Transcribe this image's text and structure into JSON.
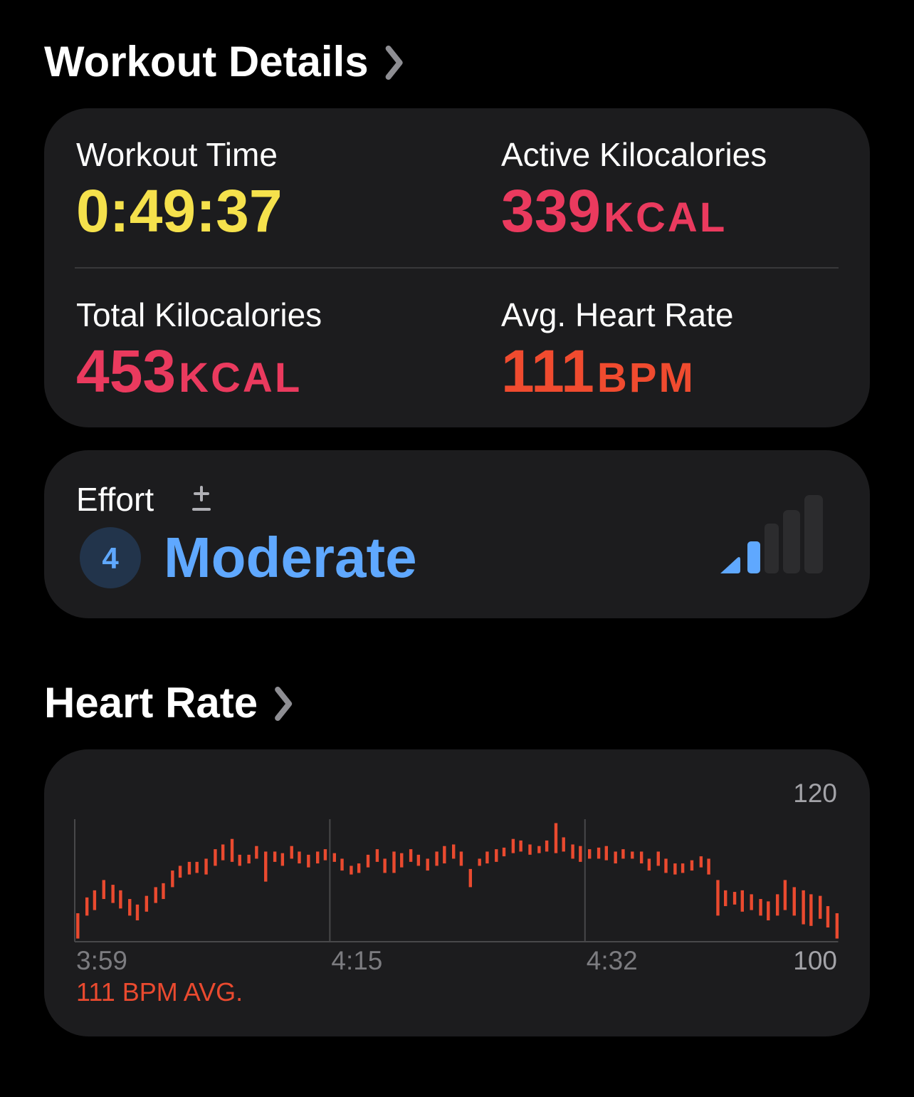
{
  "workout_details": {
    "title": "Workout Details",
    "metrics": [
      {
        "label": "Workout Time",
        "value": "0:49:37",
        "color": "#f5e14c"
      },
      {
        "label": "Active Kilocalories",
        "value": 339,
        "unit": "KCAL",
        "color": "#ea3a5e"
      },
      {
        "label": "Total Kilocalories",
        "value": 453,
        "unit": "KCAL",
        "color": "#ea3a5e"
      },
      {
        "label": "Avg. Heart Rate",
        "value": 111,
        "unit": "BPM",
        "color": "#f04b2f"
      }
    ]
  },
  "effort": {
    "label": "Effort",
    "level": 4,
    "description": "Moderate",
    "color": "#5fa8ff"
  },
  "heart_rate": {
    "title": "Heart Rate"
  },
  "chart_data": {
    "type": "range-bar",
    "color": "#ea4a2f",
    "annotation": "111 BPM AVG.",
    "xlim": [
      239,
      289
    ],
    "xticks": [
      {
        "value": 239,
        "label": "3:59"
      },
      {
        "value": 255.7,
        "label": "4:15"
      },
      {
        "value": 272.4,
        "label": "4:32"
      }
    ],
    "ylim": [
      100,
      120
    ],
    "yticks": [
      100,
      120
    ],
    "grid": true,
    "x": [
      239.2,
      239.8,
      240.3,
      240.9,
      241.5,
      242.0,
      242.6,
      243.1,
      243.7,
      244.3,
      244.8,
      245.4,
      245.9,
      246.5,
      247.0,
      247.6,
      248.2,
      248.7,
      249.3,
      249.8,
      250.4,
      250.9,
      251.5,
      252.1,
      252.6,
      253.2,
      253.7,
      254.3,
      254.9,
      255.4,
      256.0,
      256.5,
      257.1,
      257.6,
      258.2,
      258.8,
      259.3,
      259.9,
      260.4,
      261.0,
      261.5,
      262.1,
      262.7,
      263.2,
      263.8,
      264.3,
      264.9,
      265.5,
      266.0,
      266.6,
      267.1,
      267.7,
      268.2,
      268.8,
      269.4,
      269.9,
      270.5,
      271.0,
      271.6,
      272.1,
      272.7,
      273.3,
      273.8,
      274.4,
      274.9,
      275.5,
      276.1,
      276.6,
      277.2,
      277.7,
      278.3,
      278.8,
      279.4,
      280.0,
      280.5,
      281.1,
      281.6,
      282.2,
      282.7,
      283.3,
      283.9,
      284.4,
      285.0,
      285.5,
      286.1,
      286.7,
      287.2,
      287.8,
      288.3,
      288.9
    ],
    "low": [
      100.4,
      103.3,
      104,
      105.4,
      104.9,
      104.2,
      103.3,
      102.7,
      103.8,
      104.9,
      105.4,
      106.9,
      108.1,
      108.5,
      108.7,
      108.5,
      109.6,
      110.3,
      110.1,
      109.6,
      109.9,
      110.5,
      107.6,
      110.1,
      109.6,
      110.5,
      109.9,
      109.4,
      109.9,
      110.3,
      110.1,
      109,
      108.5,
      108.7,
      109.4,
      110.1,
      108.7,
      108.7,
      109.4,
      110.1,
      109.6,
      109,
      109.6,
      109.9,
      110.5,
      109.6,
      106.9,
      109.6,
      109.9,
      110.1,
      110.8,
      111.2,
      111.4,
      111,
      111.2,
      111.4,
      111.2,
      111.4,
      110.5,
      110.1,
      110.5,
      110.5,
      110.3,
      109.9,
      110.5,
      110.5,
      109.9,
      109,
      109.6,
      108.7,
      108.5,
      108.7,
      109,
      109.4,
      108.5,
      103.3,
      104.5,
      104.7,
      103.8,
      104,
      103.3,
      102.7,
      103.3,
      104,
      103.3,
      102.2,
      102,
      102.9,
      101.8,
      100.4
    ],
    "high": [
      103.6,
      105.6,
      106.5,
      107.8,
      107.2,
      106.5,
      105.4,
      104.7,
      105.8,
      106.9,
      107.4,
      109,
      109.6,
      110.1,
      110.1,
      110.5,
      111.7,
      112.3,
      113,
      111,
      111,
      112.1,
      111.4,
      111.4,
      111.2,
      112.1,
      111.4,
      111,
      111.4,
      111.7,
      111.2,
      110.5,
      109.6,
      109.9,
      111,
      111.7,
      110.5,
      111.4,
      111.2,
      111.7,
      111,
      110.5,
      111.4,
      112.1,
      112.3,
      111.4,
      109.2,
      110.5,
      111.4,
      111.7,
      111.9,
      113,
      112.8,
      112.3,
      112.1,
      112.8,
      115,
      113.2,
      112.3,
      112.1,
      111.7,
      111.9,
      112.1,
      111.4,
      111.7,
      111.4,
      111.4,
      110.5,
      111.4,
      110.5,
      109.9,
      109.9,
      110.3,
      110.8,
      110.5,
      107.8,
      106.5,
      106.3,
      106.5,
      106,
      105.4,
      105.1,
      106,
      107.8,
      106.9,
      106.5,
      106,
      105.8,
      104.5,
      103.6
    ]
  }
}
